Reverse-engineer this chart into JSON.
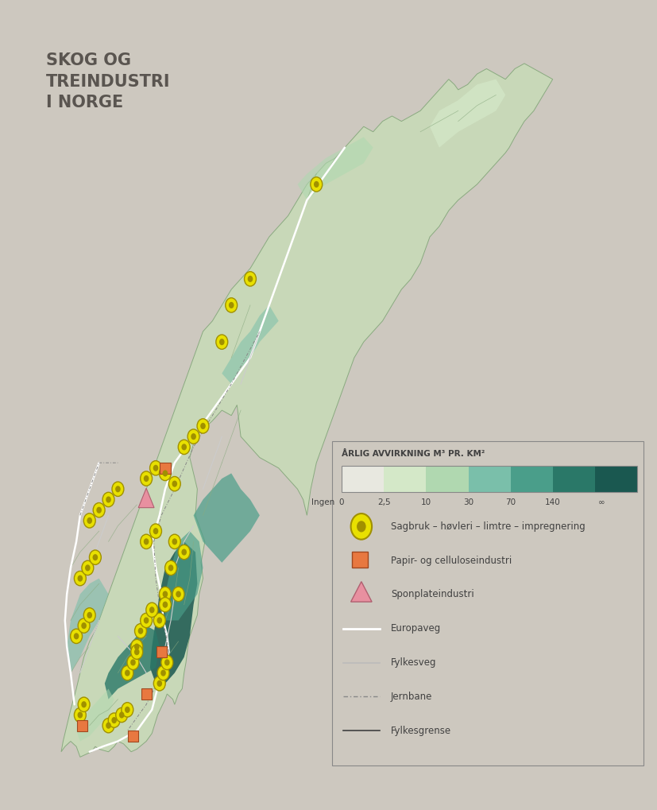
{
  "title_lines": [
    "SKOG OG",
    "TREINDUSTRI",
    "I NORGE"
  ],
  "title_fontsize": 15,
  "title_color": "#5a5550",
  "title_fontweight": "bold",
  "bg_color": "#cdc8bf",
  "colorbar_title": "ÅRLIG AVVIRKNING M³ PR. KM²",
  "colorbar_colors": [
    "#e8e8e0",
    "#d4e8c8",
    "#b0d8b0",
    "#7abfaa",
    "#4a9e8a",
    "#2a7868",
    "#1a5850"
  ],
  "colorbar_labels": [
    "Ingen",
    "0",
    "2,5",
    "10",
    "30",
    "70",
    "140",
    "∞"
  ],
  "legend_items": [
    {
      "type": "circle",
      "color_face": "#e8e000",
      "color_edge": "#a09000",
      "label": "Sagbruk – høvleri – limtre – impregnering"
    },
    {
      "type": "square",
      "color_face": "#e87840",
      "color_edge": "#a04820",
      "label": "Papir- og celluloseindustri"
    },
    {
      "type": "triangle",
      "color_face": "#e890a0",
      "color_edge": "#b06070",
      "label": "Sponplateindustri"
    },
    {
      "type": "line_white",
      "color": "#ffffff",
      "label": "Europaveg"
    },
    {
      "type": "line_gray",
      "color": "#bbbbbb",
      "label": "Fylkesveg"
    },
    {
      "type": "line_dash",
      "color": "#888888",
      "label": "Jernbane"
    },
    {
      "type": "line_black",
      "color": "#404040",
      "label": "Fylkesgrense"
    }
  ]
}
